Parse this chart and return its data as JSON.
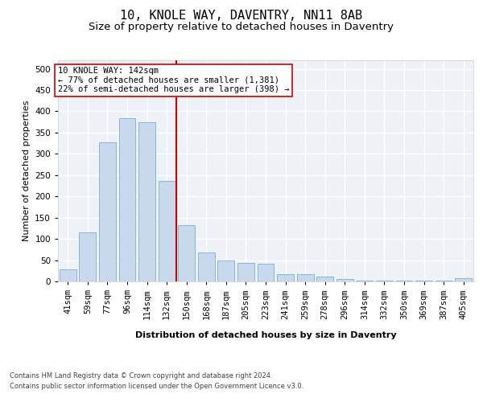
{
  "title": "10, KNOLE WAY, DAVENTRY, NN11 8AB",
  "subtitle": "Size of property relative to detached houses in Daventry",
  "xlabel": "Distribution of detached houses by size in Daventry",
  "ylabel": "Number of detached properties",
  "bar_labels": [
    "41sqm",
    "59sqm",
    "77sqm",
    "96sqm",
    "114sqm",
    "132sqm",
    "150sqm",
    "168sqm",
    "187sqm",
    "205sqm",
    "223sqm",
    "241sqm",
    "259sqm",
    "278sqm",
    "296sqm",
    "314sqm",
    "332sqm",
    "350sqm",
    "369sqm",
    "387sqm",
    "405sqm"
  ],
  "bar_values": [
    28,
    116,
    328,
    383,
    375,
    236,
    133,
    68,
    50,
    44,
    42,
    17,
    17,
    11,
    5,
    2,
    1,
    1,
    1,
    1,
    7
  ],
  "bar_color": "#c8d9ed",
  "bar_edge_color": "#7bafd4",
  "vline_x": 5.5,
  "vline_color": "#cc0000",
  "annotation_line1": "10 KNOLE WAY: 142sqm",
  "annotation_line2": "← 77% of detached houses are smaller (1,381)",
  "annotation_line3": "22% of semi-detached houses are larger (398) →",
  "annotation_box_color": "#ffffff",
  "annotation_box_edge": "#cc0000",
  "ylim": [
    0,
    520
  ],
  "yticks": [
    0,
    50,
    100,
    150,
    200,
    250,
    300,
    350,
    400,
    450,
    500
  ],
  "plot_bg_color": "#eef2f7",
  "footer_line1": "Contains HM Land Registry data © Crown copyright and database right 2024.",
  "footer_line2": "Contains public sector information licensed under the Open Government Licence v3.0.",
  "title_fontsize": 11,
  "subtitle_fontsize": 9.5,
  "axis_label_fontsize": 8,
  "tick_fontsize": 7.5,
  "annotation_fontsize": 7.5,
  "footer_fontsize": 6
}
